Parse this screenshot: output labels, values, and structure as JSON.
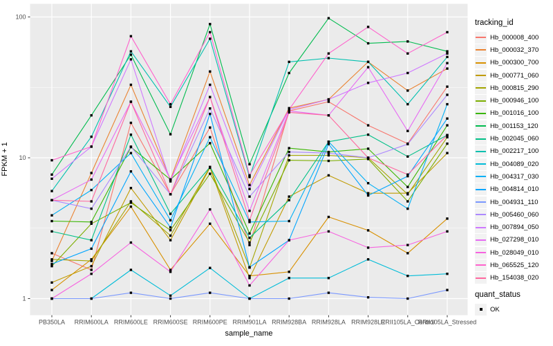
{
  "figure": {
    "background": "#FFFFFF",
    "panel_background": "#EBEBEB",
    "grid_color": "#FFFFFF",
    "axis_text_color": "#4D4D4D",
    "tick_mark_color": "#333333",
    "point_color": "#000000",
    "legend_key_background": "#F2F2F2"
  },
  "axes": {
    "x_title": "sample_name",
    "y_title": "FPKM + 1",
    "y_tick_labels": [
      "1",
      "10",
      "100"
    ]
  },
  "legend": {
    "color_legend_title": "tracking_id",
    "shape_legend_title": "quant_status",
    "shape_legend_label": "OK"
  },
  "chart_data": {
    "type": "line",
    "title": "",
    "xlabel": "sample_name",
    "ylabel": "FPKM + 1",
    "y_scale": "log10",
    "y_ticks": [
      1,
      10,
      100
    ],
    "y_minor_ticks": [
      3.162,
      31.623
    ],
    "ylim": [
      0.78,
      124
    ],
    "grid": true,
    "legend_position": "right",
    "point_marker": "filled-black-square",
    "quant_status_value": "OK",
    "x_categories": [
      "PB350LA",
      "RRIM600LA",
      "RRIM600LE",
      "RRIM600SE",
      "RRIM600PE",
      "RRIM901LA",
      "RRIM928BA",
      "RRIM928LA",
      "RRIM928LE",
      "RRII105LA_Control",
      "RRII105LA_Stressed"
    ],
    "series": [
      {
        "name": "Hb_000008_400",
        "color": "#F8766D",
        "values": [
          2.1,
          1.6,
          17.7,
          5.5,
          16.4,
          2.4,
          21.5,
          25,
          17,
          12.6,
          32
        ]
      },
      {
        "name": "Hb_000032_370",
        "color": "#EA8331",
        "values": [
          1.85,
          7.8,
          33,
          7.0,
          41,
          6.4,
          22.5,
          26,
          48,
          30,
          43
        ]
      },
      {
        "name": "Hb_000300_700",
        "color": "#D89000",
        "values": [
          1.15,
          1.9,
          4.5,
          1.6,
          3.4,
          1.45,
          1.55,
          3.8,
          3.05,
          2.1,
          3.7
        ]
      },
      {
        "name": "Hb_000771_060",
        "color": "#C09B00",
        "values": [
          1.3,
          1.7,
          6.1,
          2.6,
          8.5,
          1.4,
          5.3,
          7.5,
          5.6,
          5.6,
          10.8
        ]
      },
      {
        "name": "Hb_000815_290",
        "color": "#A3A500",
        "values": [
          1.9,
          1.85,
          4.9,
          2.8,
          8.6,
          1.66,
          10.4,
          10.4,
          10.0,
          5.5,
          14.0
        ]
      },
      {
        "name": "Hb_000946_100",
        "color": "#7CAE00",
        "values": [
          1.7,
          3.4,
          4.8,
          3.06,
          7.7,
          2.5,
          9.6,
          9.5,
          9.8,
          4.9,
          12.6
        ]
      },
      {
        "name": "Hb_001016_100",
        "color": "#39B600",
        "values": [
          3.55,
          3.5,
          11.9,
          7.0,
          12.7,
          2.9,
          11.7,
          11.0,
          11.6,
          6.2,
          17.0
        ]
      },
      {
        "name": "Hb_001153_120",
        "color": "#00BB4E",
        "values": [
          7.6,
          20,
          54,
          14.7,
          89,
          9.0,
          40,
          98,
          65,
          67,
          57
        ]
      },
      {
        "name": "Hb_002045_060",
        "color": "#00C087",
        "values": [
          3.0,
          2.6,
          14.6,
          4.0,
          8.6,
          2.7,
          5.0,
          13.0,
          14.6,
          10.2,
          14.5
        ]
      },
      {
        "name": "Hb_002217_100",
        "color": "#00C0AF",
        "values": [
          5.8,
          14.1,
          57,
          23,
          70,
          7.3,
          48,
          51,
          48,
          24,
          52
        ]
      },
      {
        "name": "Hb_004089_020",
        "color": "#00BCD8",
        "values": [
          1.0,
          1.0,
          1.6,
          1.05,
          1.65,
          1.0,
          1.4,
          1.4,
          1.9,
          1.45,
          1.5
        ]
      },
      {
        "name": "Hb_004317_030",
        "color": "#00B0F6",
        "values": [
          3.9,
          5.9,
          10.8,
          3.6,
          14.0,
          3.5,
          3.55,
          13.0,
          6.6,
          4.35,
          24
        ]
      },
      {
        "name": "Hb_004814_010",
        "color": "#00A5FF",
        "values": [
          1.76,
          2.26,
          8.0,
          3.2,
          20.5,
          1.67,
          2.6,
          12.5,
          5.4,
          7.4,
          19
        ]
      },
      {
        "name": "Hb_004931_110",
        "color": "#7997FF",
        "values": [
          1.0,
          1.0,
          1.1,
          1.0,
          1.1,
          1.0,
          1.0,
          1.1,
          1.02,
          1.0,
          1.15
        ]
      },
      {
        "name": "Hb_005460_060",
        "color": "#AC88FF",
        "values": [
          5.0,
          4.35,
          12.0,
          5.5,
          22.4,
          5.3,
          11.0,
          10.8,
          10.0,
          12.5,
          28
        ]
      },
      {
        "name": "Hb_007894_050",
        "color": "#CF78FF",
        "values": [
          7.1,
          12.0,
          50,
          6.8,
          33,
          6.0,
          22,
          26,
          34,
          40,
          55
        ]
      },
      {
        "name": "Hb_027298_010",
        "color": "#E76BF3",
        "values": [
          5.0,
          7.0,
          25,
          7.0,
          27,
          4.2,
          21.5,
          20,
          44,
          15.5,
          47
        ]
      },
      {
        "name": "Hb_028049_010",
        "color": "#F763E0",
        "values": [
          1.0,
          1.5,
          2.5,
          1.55,
          4.3,
          1.24,
          2.6,
          3.0,
          2.3,
          2.4,
          3.0
        ]
      },
      {
        "name": "Hb_065525_120",
        "color": "#FF61CC",
        "values": [
          9.6,
          12.0,
          73,
          24,
          78,
          7.5,
          22,
          55,
          85,
          55,
          78
        ]
      },
      {
        "name": "Hb_154038_020",
        "color": "#FF689F",
        "values": [
          5.0,
          4.9,
          25,
          5.5,
          27,
          3.6,
          21,
          20,
          10.0,
          7.6,
          14.5
        ]
      }
    ]
  }
}
